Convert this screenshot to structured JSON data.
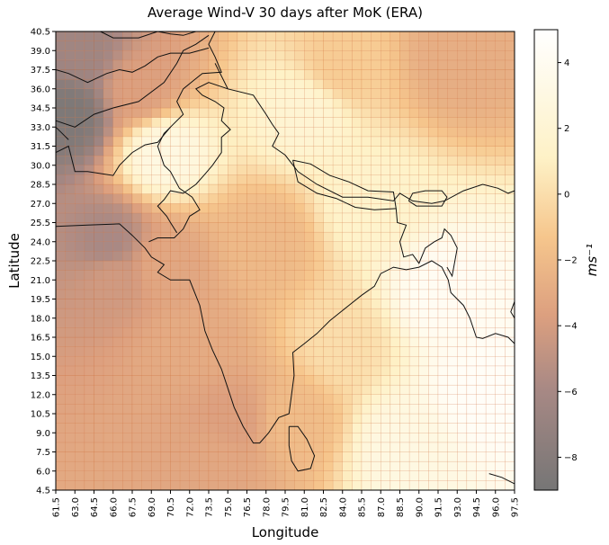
{
  "chart_data": {
    "type": "heatmap",
    "title": "Average Wind-V 30 days after MoK (ERA)",
    "xlabel": "Longitude",
    "ylabel": "Latitude",
    "xlim": [
      61.5,
      97.5
    ],
    "ylim": [
      4.5,
      40.5
    ],
    "xticks": [
      "61.5",
      "63.0",
      "64.5",
      "66.0",
      "67.5",
      "69.0",
      "70.5",
      "72.0",
      "73.5",
      "75.0",
      "76.5",
      "78.0",
      "79.5",
      "81.0",
      "82.5",
      "84.0",
      "85.5",
      "87.0",
      "88.5",
      "90.0",
      "91.5",
      "93.0",
      "94.5",
      "96.0",
      "97.5"
    ],
    "yticks": [
      "4.5",
      "6.0",
      "7.5",
      "9.0",
      "10.5",
      "12.0",
      "13.5",
      "15.0",
      "16.5",
      "18.0",
      "19.5",
      "21.0",
      "22.5",
      "24.0",
      "25.5",
      "27.0",
      "28.5",
      "30.0",
      "31.5",
      "33.0",
      "34.5",
      "36.0",
      "37.5",
      "39.0",
      "40.5"
    ],
    "colorbar": {
      "label": "ms⁻¹",
      "range": [
        -9,
        5
      ],
      "ticks": [
        "4",
        "2",
        "0",
        "−2",
        "−4",
        "−6",
        "−8"
      ],
      "tick_values": [
        4,
        2,
        0,
        -2,
        -4,
        -6,
        -8
      ],
      "colormap": "afmhot",
      "colors": {
        "low": "#1a1a1a",
        "mid_low": "#9c4e3e",
        "mid": "#e8962f",
        "mid_high": "#f6c56d",
        "high": "#fffff2"
      }
    },
    "grid_resolution_deg": 0.75,
    "field_anchor_values": [
      {
        "lon": 62.5,
        "lat": 34.0,
        "v": -8.5
      },
      {
        "lon": 63.5,
        "lat": 39.0,
        "v": -6.5
      },
      {
        "lon": 65.5,
        "lat": 24.0,
        "v": -6.0
      },
      {
        "lon": 66.0,
        "lat": 21.0,
        "v": -4.5
      },
      {
        "lon": 70.0,
        "lat": 22.0,
        "v": -3.5
      },
      {
        "lon": 72.0,
        "lat": 16.0,
        "v": -3.2
      },
      {
        "lon": 75.5,
        "lat": 10.0,
        "v": -4.0
      },
      {
        "lon": 74.0,
        "lat": 7.0,
        "v": -3.5
      },
      {
        "lon": 78.0,
        "lat": 24.0,
        "v": -2.2
      },
      {
        "lon": 80.0,
        "lat": 10.0,
        "v": -2.0
      },
      {
        "lon": 70.0,
        "lat": 31.0,
        "v": 3.0
      },
      {
        "lon": 81.0,
        "lat": 34.0,
        "v": 2.0
      },
      {
        "lon": 84.0,
        "lat": 38.0,
        "v": -1.0
      },
      {
        "lon": 93.0,
        "lat": 38.5,
        "v": -3.0
      },
      {
        "lon": 86.0,
        "lat": 27.0,
        "v": 1.5
      },
      {
        "lon": 92.0,
        "lat": 20.0,
        "v": 4.2
      },
      {
        "lon": 95.0,
        "lat": 12.0,
        "v": 4.5
      },
      {
        "lon": 89.0,
        "lat": 8.0,
        "v": 3.0
      },
      {
        "lon": 84.0,
        "lat": 16.0,
        "v": 0.0
      },
      {
        "lon": 68.0,
        "lat": 36.0,
        "v": -4.0
      }
    ]
  }
}
